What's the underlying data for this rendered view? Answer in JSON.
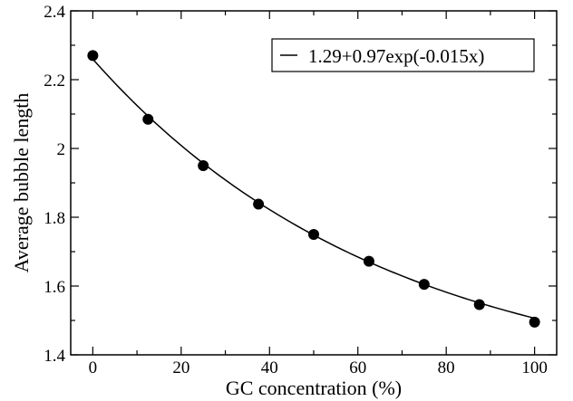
{
  "chart_data": {
    "type": "scatter",
    "title": "",
    "xlabel": "GC concentration (%)",
    "ylabel": "Average bubble length",
    "xlim": [
      -5,
      105
    ],
    "ylim": [
      1.4,
      2.4
    ],
    "x_ticks": [
      0,
      20,
      40,
      60,
      80,
      100
    ],
    "x_tick_labels": [
      "0",
      "20",
      "40",
      "60",
      "80",
      "100"
    ],
    "y_ticks": [
      1.4,
      1.6,
      1.8,
      2.0,
      2.2,
      2.4
    ],
    "y_tick_labels": [
      "1.4",
      "1.6",
      "1.8",
      "2",
      "2.2",
      "2.4"
    ],
    "grid": false,
    "legend_position": "top-right",
    "series": [
      {
        "type": "scatter",
        "color": "#000000",
        "x": [
          0,
          12.5,
          25,
          37.5,
          50,
          62.5,
          75,
          87.5,
          100
        ],
        "y": [
          2.27,
          2.085,
          1.95,
          1.838,
          1.75,
          1.672,
          1.605,
          1.546,
          1.495
        ]
      },
      {
        "type": "line",
        "name": "1.29+0.97exp(-0.015x)",
        "color": "#000000",
        "formula": {
          "a": 1.29,
          "b": 0.97,
          "k": -0.015
        },
        "x_range": [
          0,
          100
        ]
      }
    ]
  }
}
